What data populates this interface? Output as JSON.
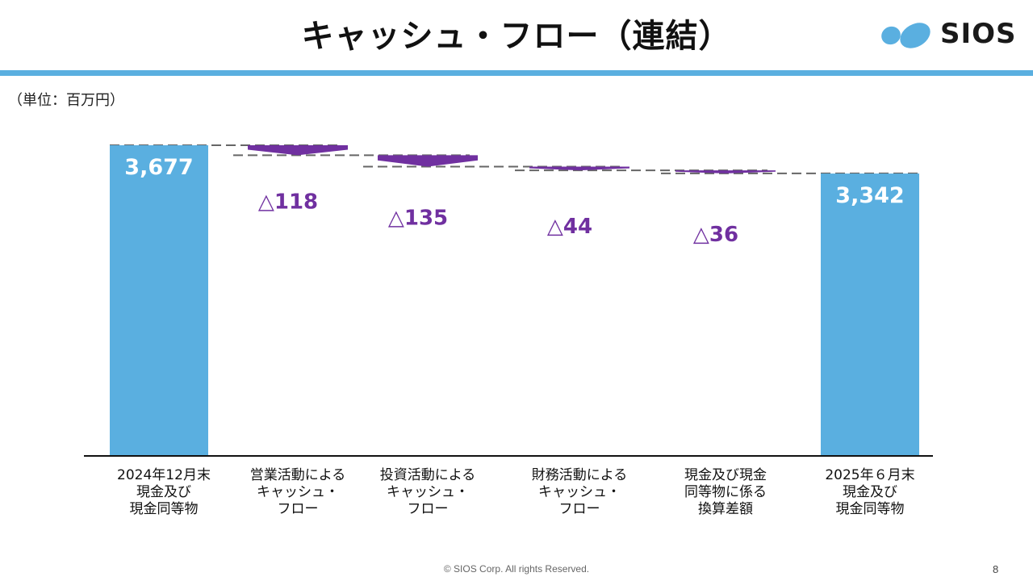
{
  "header": {
    "title": "キャッシュ・フロー（連結）",
    "logo_text": "SIOS",
    "unit_label": "（単位：百万円）"
  },
  "colors": {
    "bar": "#5aafe0",
    "change": "#7030a0",
    "header_bar": "#5aafe0"
  },
  "chart_data": {
    "type": "bar",
    "subtype": "waterfall",
    "categories": [
      [
        "2024年12月末",
        "現金及び",
        "現金同等物"
      ],
      [
        "営業活動による",
        "キャッシュ・",
        "フロー"
      ],
      [
        "投資活動による",
        "キャッシュ・",
        "フロー"
      ],
      [
        "財務活動による",
        "キャッシュ・",
        "フロー"
      ],
      [
        "現金及び現金",
        "同等物に係る",
        "換算差額"
      ],
      [
        "2025年６月末",
        "現金及び",
        "現金同等物"
      ]
    ],
    "values": [
      3677,
      -118,
      -135,
      -44,
      -36,
      3342
    ],
    "labels": [
      "3,677",
      "△118",
      "△135",
      "△44",
      "△36",
      "3,342"
    ],
    "ylim": [
      0,
      3677
    ]
  },
  "footer": {
    "copyright": "© SIOS Corp. All rights Reserved.",
    "page": "8"
  }
}
